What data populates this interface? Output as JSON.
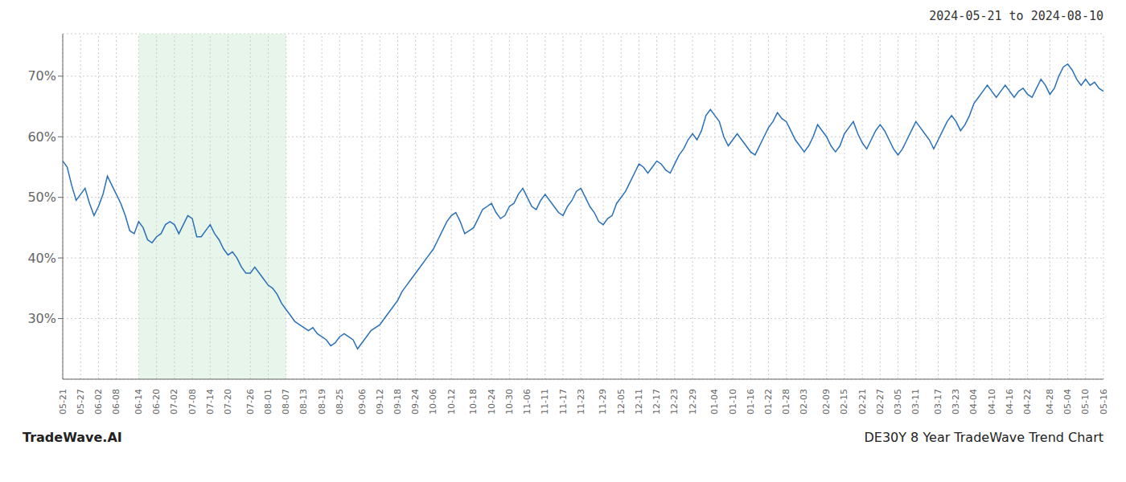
{
  "chart_data": {
    "type": "line",
    "title": "2024-05-21 to 2024-08-10",
    "annotations": [
      "TradeWave.AI",
      "DE30Y 8 Year TradeWave Trend Chart"
    ],
    "color": "#2970b8",
    "grid": true,
    "ylim": [
      20,
      77
    ],
    "yticks": [
      {
        "value": 30,
        "label": "30%"
      },
      {
        "value": 40,
        "label": "40%"
      },
      {
        "value": 50,
        "label": "50%"
      },
      {
        "value": 60,
        "label": "60%"
      },
      {
        "value": 70,
        "label": "70%"
      }
    ],
    "shaded_span": {
      "start": "06-14",
      "end": "08-07",
      "color": "#d4edda"
    },
    "categories": [
      "05-21",
      null,
      null,
      null,
      "05-27",
      null,
      null,
      null,
      "06-02",
      null,
      null,
      null,
      "06-08",
      null,
      null,
      null,
      null,
      "06-14",
      null,
      null,
      null,
      "06-20",
      null,
      null,
      null,
      "07-02",
      null,
      null,
      null,
      "07-08",
      null,
      null,
      null,
      "07-14",
      null,
      null,
      null,
      "07-20",
      null,
      null,
      null,
      null,
      "07-26",
      null,
      null,
      null,
      "08-01",
      null,
      null,
      null,
      "08-07",
      null,
      null,
      null,
      "08-13",
      null,
      null,
      null,
      "08-19",
      null,
      null,
      null,
      "08-25",
      null,
      null,
      null,
      null,
      "09-06",
      null,
      null,
      null,
      "09-12",
      null,
      null,
      null,
      "09-18",
      null,
      null,
      null,
      "09-24",
      null,
      null,
      null,
      "10-06",
      null,
      null,
      null,
      "10-12",
      null,
      null,
      null,
      null,
      "10-18",
      null,
      null,
      null,
      "10-24",
      null,
      null,
      null,
      "10-30",
      null,
      null,
      null,
      "11-06",
      null,
      null,
      null,
      "11-11",
      null,
      null,
      null,
      "11-17",
      null,
      null,
      null,
      "11-23",
      null,
      null,
      null,
      null,
      "11-29",
      null,
      null,
      null,
      "12-05",
      null,
      null,
      null,
      "12-11",
      null,
      null,
      null,
      "12-17",
      null,
      null,
      null,
      "12-23",
      null,
      null,
      null,
      "12-29",
      null,
      null,
      null,
      null,
      "01-04",
      null,
      null,
      null,
      "01-10",
      null,
      null,
      null,
      "01-16",
      null,
      null,
      null,
      "01-22",
      null,
      null,
      null,
      "01-28",
      null,
      null,
      null,
      "02-03",
      null,
      null,
      null,
      null,
      "02-09",
      null,
      null,
      null,
      "02-15",
      null,
      null,
      null,
      "02-21",
      null,
      null,
      null,
      "02-27",
      null,
      null,
      null,
      "03-05",
      null,
      null,
      null,
      "03-11",
      null,
      null,
      null,
      null,
      "03-17",
      null,
      null,
      null,
      "03-23",
      null,
      null,
      null,
      "04-04",
      null,
      null,
      null,
      "04-10",
      null,
      null,
      null,
      "04-16",
      null,
      null,
      null,
      "04-22",
      null,
      null,
      null,
      null,
      "04-28",
      null,
      null,
      null,
      "05-04",
      null,
      null,
      null,
      "05-10",
      null,
      null,
      null,
      "05-16"
    ],
    "values": [
      56.0,
      55.0,
      52.0,
      49.5,
      50.5,
      51.5,
      49.0,
      47.0,
      48.5,
      50.5,
      53.5,
      52.0,
      50.5,
      49.0,
      47.0,
      44.5,
      44.0,
      46.0,
      45.0,
      43.0,
      42.5,
      43.5,
      44.0,
      45.5,
      46.0,
      45.5,
      44.0,
      45.5,
      47.0,
      46.5,
      43.5,
      43.5,
      44.5,
      45.5,
      44.0,
      43.0,
      41.5,
      40.5,
      41.0,
      40.0,
      38.5,
      37.5,
      37.5,
      38.5,
      37.5,
      36.5,
      35.5,
      35.0,
      34.0,
      32.5,
      31.5,
      30.5,
      29.5,
      29.0,
      28.5,
      28.0,
      28.5,
      27.5,
      27.0,
      26.5,
      25.5,
      26.0,
      27.0,
      27.5,
      27.0,
      26.5,
      25.0,
      26.0,
      27.0,
      28.0,
      28.5,
      29.0,
      30.0,
      31.0,
      32.0,
      33.0,
      34.5,
      35.5,
      36.5,
      37.5,
      38.5,
      39.5,
      40.5,
      41.5,
      43.0,
      44.5,
      46.0,
      47.0,
      47.5,
      46.0,
      44.0,
      44.5,
      45.0,
      46.5,
      48.0,
      48.5,
      49.0,
      47.5,
      46.5,
      47.0,
      48.5,
      49.0,
      50.5,
      51.5,
      50.0,
      48.5,
      48.0,
      49.5,
      50.5,
      49.5,
      48.5,
      47.5,
      47.0,
      48.5,
      49.5,
      51.0,
      51.5,
      50.0,
      48.5,
      47.5,
      46.0,
      45.5,
      46.5,
      47.0,
      49.0,
      50.0,
      51.0,
      52.5,
      54.0,
      55.5,
      55.0,
      54.0,
      55.0,
      56.0,
      55.5,
      54.5,
      54.0,
      55.5,
      57.0,
      58.0,
      59.5,
      60.5,
      59.5,
      61.0,
      63.5,
      64.5,
      63.5,
      62.5,
      60.0,
      58.5,
      59.5,
      60.5,
      59.5,
      58.5,
      57.5,
      57.0,
      58.5,
      60.0,
      61.5,
      62.5,
      64.0,
      63.0,
      62.5,
      61.0,
      59.5,
      58.5,
      57.5,
      58.5,
      60.0,
      62.0,
      61.0,
      60.0,
      58.5,
      57.5,
      58.5,
      60.5,
      61.5,
      62.5,
      60.5,
      59.0,
      58.0,
      59.5,
      61.0,
      62.0,
      61.0,
      59.5,
      58.0,
      57.0,
      58.0,
      59.5,
      61.0,
      62.5,
      61.5,
      60.5,
      59.5,
      58.0,
      59.5,
      61.0,
      62.5,
      63.5,
      62.5,
      61.0,
      62.0,
      63.5,
      65.5,
      66.5,
      67.5,
      68.5,
      67.5,
      66.5,
      67.5,
      68.5,
      67.5,
      66.5,
      67.5,
      68.0,
      67.0,
      66.5,
      68.0,
      69.5,
      68.5,
      67.0,
      68.0,
      70.0,
      71.5,
      72.0,
      71.0,
      69.5,
      68.5,
      69.5,
      68.5,
      69.0,
      68.0,
      67.5
    ]
  }
}
